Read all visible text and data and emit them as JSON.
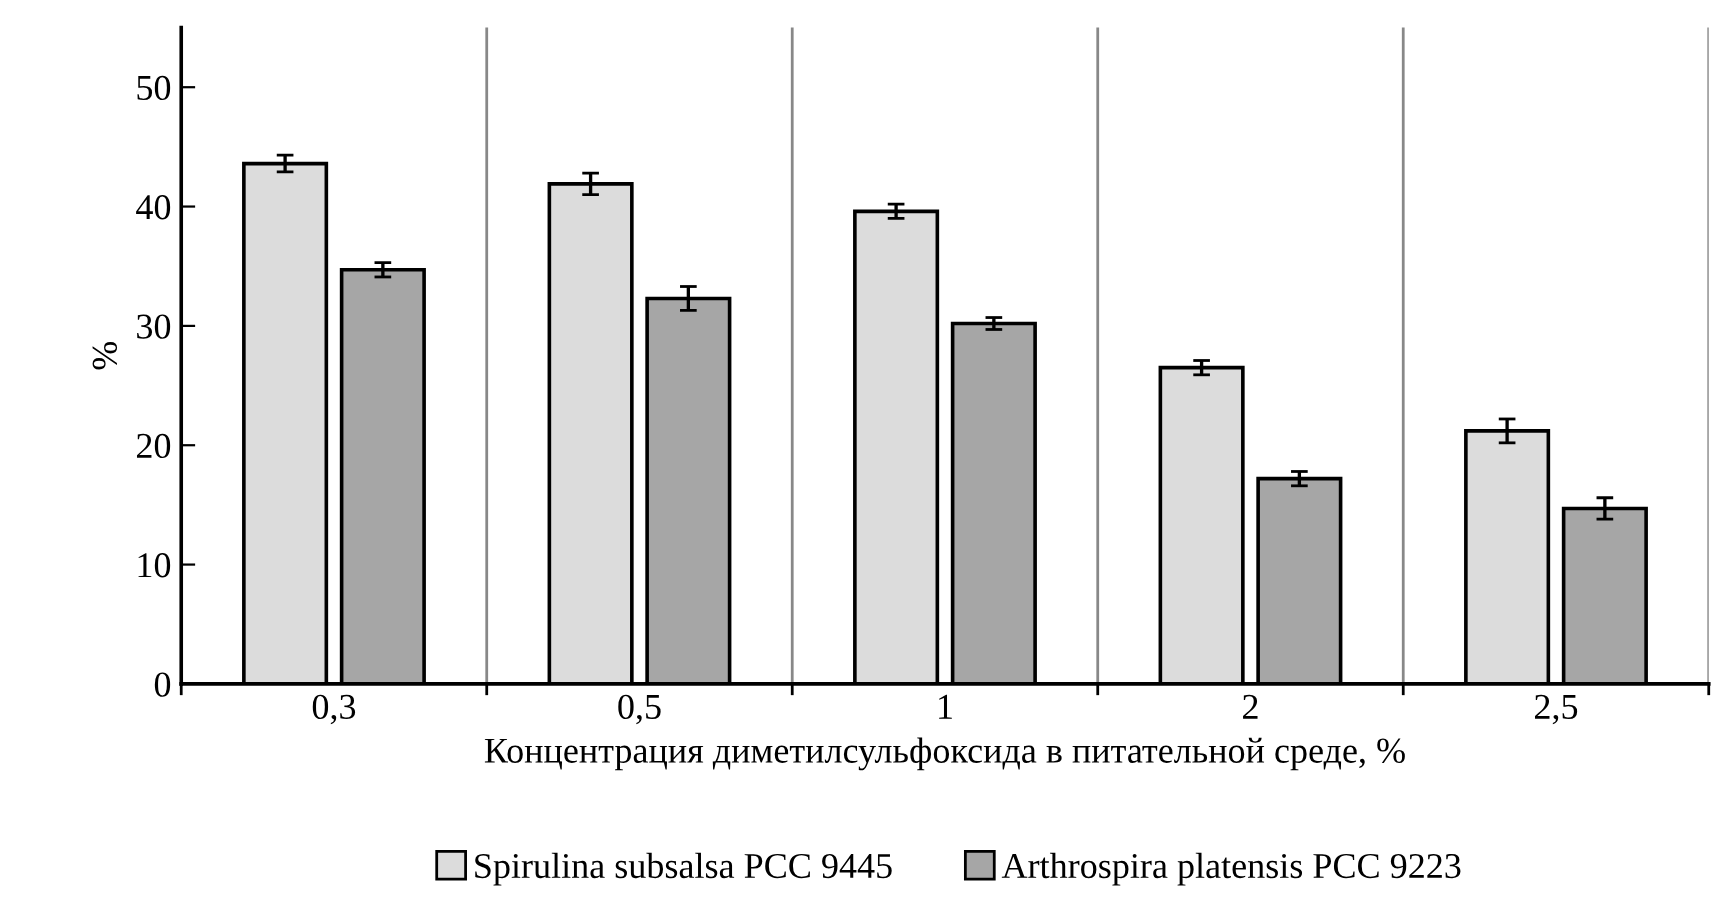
{
  "chart_data": {
    "type": "bar",
    "xlabel": "Концентрация диметилсульфоксида в питательной среде, %",
    "ylabel": "%",
    "categories": [
      "0,3",
      "0,5",
      "1",
      "2",
      "2,5"
    ],
    "series": [
      {
        "name": "Spirulina subsalsa PCC 9445",
        "color": "#dcdcdc",
        "values": [
          43.6,
          41.9,
          39.6,
          26.5,
          21.2
        ],
        "errors": [
          0.7,
          0.9,
          0.6,
          0.6,
          1.0
        ]
      },
      {
        "name": "Arthrospira platensis PCC 9223",
        "color": "#a6a6a6",
        "values": [
          34.7,
          32.3,
          30.2,
          17.2,
          14.7
        ],
        "errors": [
          0.6,
          1.0,
          0.5,
          0.6,
          0.9
        ]
      }
    ],
    "ylim": [
      0,
      55
    ],
    "yticks": [
      0,
      10,
      20,
      30,
      40,
      50
    ],
    "grid": "x",
    "legend": "bottom"
  }
}
